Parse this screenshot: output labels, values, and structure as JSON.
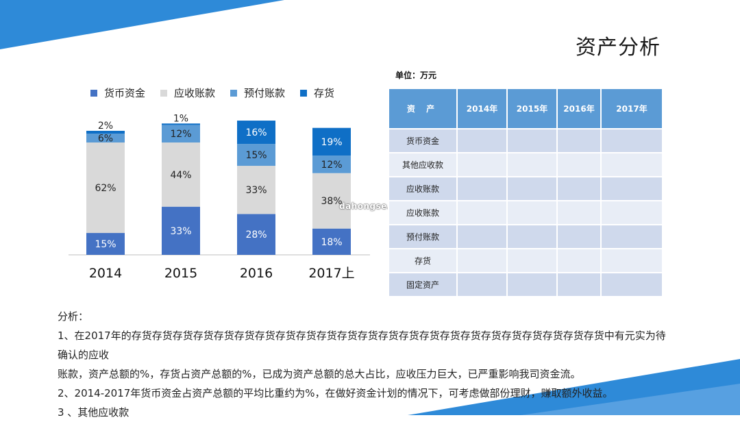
{
  "slide": {
    "title": "资产分析",
    "unit": "单位：万元",
    "watermark": "dahongse.com"
  },
  "colors": {
    "货币资金": "#4472c4",
    "应收账款": "#d9d9d9",
    "预付账款": "#5b9bd5",
    "存货": "#0f6fc6",
    "accent": "#2e8ad8"
  },
  "chart_data": {
    "type": "bar",
    "stacked": true,
    "percent": true,
    "categories": [
      "2014",
      "2015",
      "2016",
      "2017上"
    ],
    "series": [
      {
        "name": "货币资金",
        "values": [
          15,
          33,
          28,
          18
        ]
      },
      {
        "name": "应收账款",
        "values": [
          62,
          44,
          33,
          38
        ]
      },
      {
        "name": "预付账款",
        "values": [
          6,
          12,
          15,
          12
        ]
      },
      {
        "name": "存货",
        "values": [
          2,
          1,
          16,
          19
        ]
      }
    ],
    "legend_position": "top",
    "grid": false
  },
  "table": {
    "headers": [
      "资 产",
      "2014年",
      "2015年",
      "2016年",
      "2017年"
    ],
    "rows": [
      "货币资金",
      "其他应收款",
      "应收账款",
      "应收账款",
      "预付账款",
      "存货",
      "固定资产"
    ]
  },
  "analysis": {
    "heading": "分析：",
    "lines": [
      "1、在2017年的存货存货存货存货存货存货存货存货存货存货存货存货存货存货存货存货存货存货存货存货存货存货存货中有元实为待确认的应收",
      "账款，资产总额的%，存货占资产总额的%，已成为资产总额的总大占比，应收压力巨大，已严重影响我司资金流。",
      "2、2014-2017年货币资金占资产总额的平均比重约为%，在做好资金计划的情况下，可考虑做部份理财，赚取额外收益。",
      "3 、其他应收款"
    ]
  }
}
